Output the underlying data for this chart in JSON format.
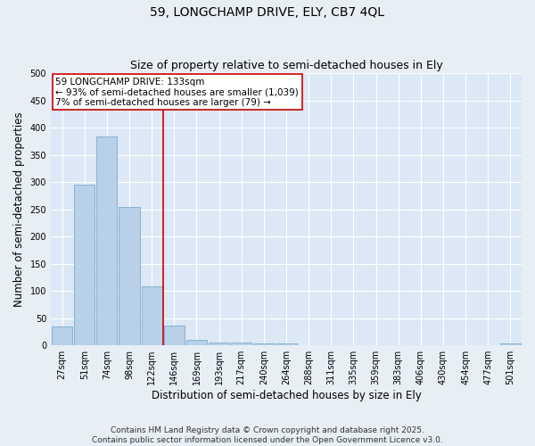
{
  "title": "59, LONGCHAMP DRIVE, ELY, CB7 4QL",
  "subtitle": "Size of property relative to semi-detached houses in Ely",
  "xlabel": "Distribution of semi-detached houses by size in Ely",
  "ylabel": "Number of semi-detached properties",
  "categories": [
    "27sqm",
    "51sqm",
    "74sqm",
    "98sqm",
    "122sqm",
    "146sqm",
    "169sqm",
    "193sqm",
    "217sqm",
    "240sqm",
    "264sqm",
    "288sqm",
    "311sqm",
    "335sqm",
    "359sqm",
    "383sqm",
    "406sqm",
    "430sqm",
    "454sqm",
    "477sqm",
    "501sqm"
  ],
  "values": [
    35,
    295,
    383,
    255,
    108,
    37,
    10,
    6,
    5,
    4,
    3,
    0,
    0,
    0,
    0,
    0,
    0,
    0,
    0,
    0,
    3
  ],
  "bar_color": "#b8d0e8",
  "bar_edge_color": "#7baad0",
  "red_line_after_index": 4,
  "highlight_line_color": "#cc0000",
  "annotation_line1": "59 LONGCHAMP DRIVE: 133sqm",
  "annotation_line2": "← 93% of semi-detached houses are smaller (1,039)",
  "annotation_line3": "7% of semi-detached houses are larger (79) →",
  "ylim": [
    0,
    500
  ],
  "yticks": [
    0,
    50,
    100,
    150,
    200,
    250,
    300,
    350,
    400,
    450,
    500
  ],
  "background_color": "#e8eef5",
  "plot_background": "#dce8f5",
  "footer_line1": "Contains HM Land Registry data © Crown copyright and database right 2025.",
  "footer_line2": "Contains public sector information licensed under the Open Government Licence v3.0.",
  "title_fontsize": 10,
  "subtitle_fontsize": 9,
  "axis_label_fontsize": 8.5,
  "tick_fontsize": 7,
  "annotation_fontsize": 7.5,
  "footer_fontsize": 6.5
}
